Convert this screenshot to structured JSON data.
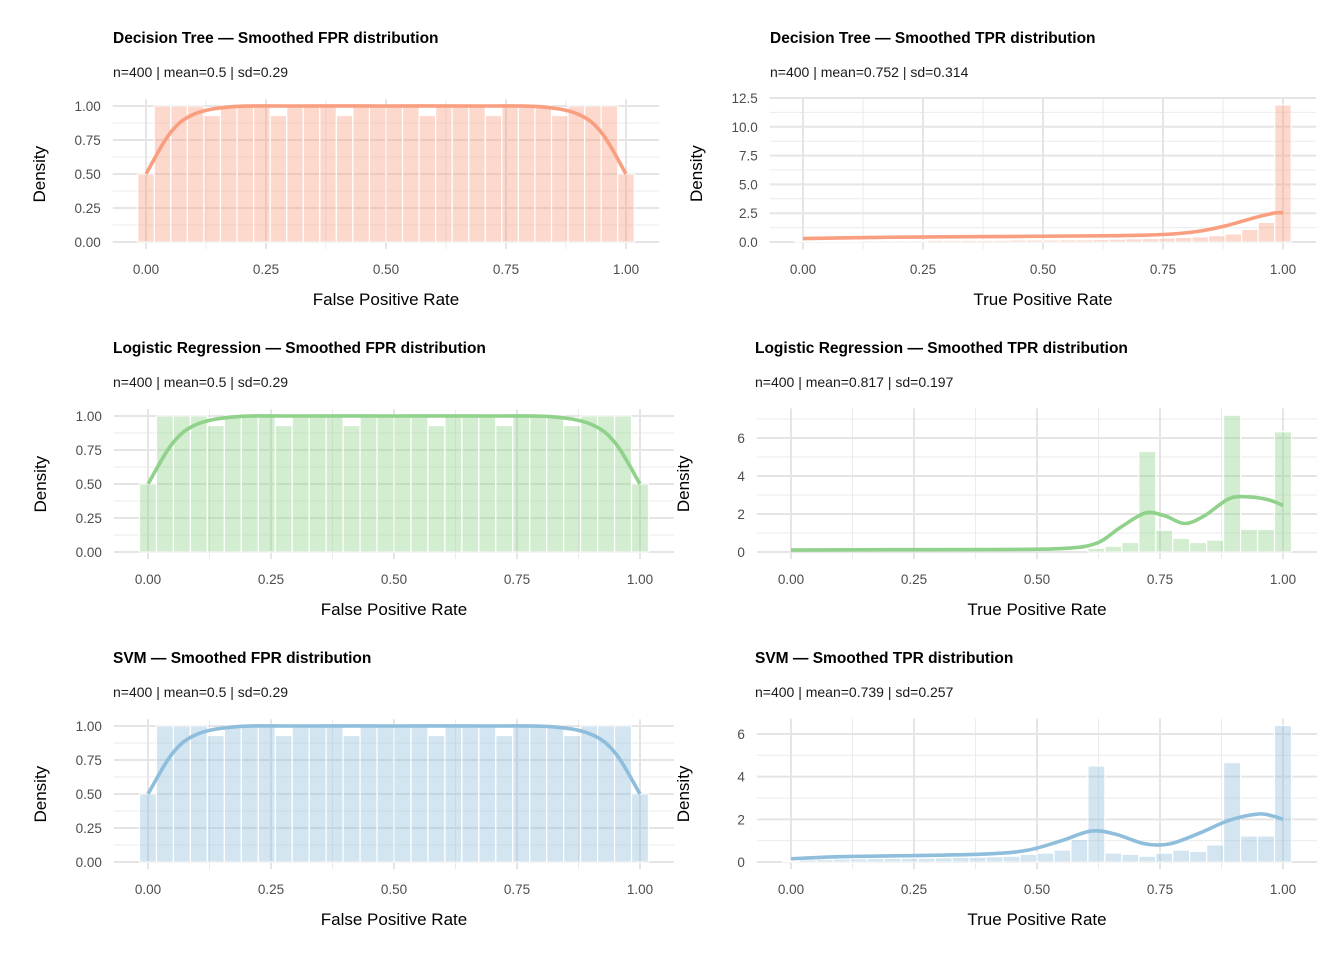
{
  "chart_data": [
    {
      "type": "bar+line",
      "title": "Decision Tree — Smoothed FPR distribution",
      "subtitle": "n=400 | mean=0.5 | sd=0.29",
      "xlabel": "False Positive Rate",
      "ylabel": "Density",
      "xticks": [
        "0.00",
        "0.25",
        "0.50",
        "0.75",
        "1.00"
      ],
      "yticks": [
        "0.00",
        "0.25",
        "0.50",
        "0.75",
        "1.00"
      ],
      "ytick_values": [
        0,
        0.25,
        0.5,
        0.75,
        1
      ],
      "xlim": [
        0,
        1
      ],
      "color": "#FA9E80",
      "bins": 30,
      "histogram_density": [
        0.5,
        1,
        1,
        1,
        0.93,
        1,
        1,
        1,
        0.93,
        1,
        1,
        1,
        0.93,
        1,
        1,
        1,
        1,
        0.93,
        1,
        1,
        1,
        0.93,
        1,
        1,
        1,
        0.93,
        1,
        1,
        1,
        0.5
      ],
      "density_curve": [
        [
          0,
          0.5
        ],
        [
          0.05,
          0.8
        ],
        [
          0.1,
          0.94
        ],
        [
          0.18,
          0.995
        ],
        [
          0.3,
          1
        ],
        [
          0.5,
          1
        ],
        [
          0.7,
          1
        ],
        [
          0.82,
          0.995
        ],
        [
          0.9,
          0.94
        ],
        [
          0.95,
          0.8
        ],
        [
          1,
          0.5
        ]
      ]
    },
    {
      "type": "bar+line",
      "title": "Decision Tree — Smoothed TPR distribution",
      "subtitle": "n=400 | mean=0.752 | sd=0.314",
      "xlabel": "True Positive Rate",
      "ylabel": "Density",
      "xticks": [
        "0.00",
        "0.25",
        "0.50",
        "0.75",
        "1.00"
      ],
      "yticks": [
        "0.0",
        "2.5",
        "5.0",
        "7.5",
        "10.0",
        "12.5"
      ],
      "ytick_values": [
        0,
        2.5,
        5,
        7.5,
        10,
        12.5
      ],
      "xlim": [
        0,
        1
      ],
      "color": "#FA9E80",
      "bins": 30,
      "histogram_density": [
        0.05,
        0.1,
        0.1,
        0.1,
        0.12,
        0.12,
        0.12,
        0.12,
        0.15,
        0.15,
        0.15,
        0.15,
        0.15,
        0.18,
        0.18,
        0.18,
        0.2,
        0.2,
        0.22,
        0.25,
        0.28,
        0.3,
        0.35,
        0.4,
        0.45,
        0.55,
        0.7,
        1.1,
        1.7,
        11.9
      ],
      "density_curve": [
        [
          0,
          0.3
        ],
        [
          0.15,
          0.4
        ],
        [
          0.3,
          0.45
        ],
        [
          0.5,
          0.5
        ],
        [
          0.65,
          0.55
        ],
        [
          0.75,
          0.65
        ],
        [
          0.82,
          0.9
        ],
        [
          0.88,
          1.4
        ],
        [
          0.94,
          2.1
        ],
        [
          0.98,
          2.5
        ],
        [
          1,
          2.55
        ]
      ]
    },
    {
      "type": "bar+line",
      "title": "Logistic Regression — Smoothed FPR distribution",
      "subtitle": "n=400 | mean=0.5 | sd=0.29",
      "xlabel": "False Positive Rate",
      "ylabel": "Density",
      "xticks": [
        "0.00",
        "0.25",
        "0.50",
        "0.75",
        "1.00"
      ],
      "yticks": [
        "0.00",
        "0.25",
        "0.50",
        "0.75",
        "1.00"
      ],
      "ytick_values": [
        0,
        0.25,
        0.5,
        0.75,
        1
      ],
      "xlim": [
        0,
        1
      ],
      "color": "#90D18B",
      "bins": 30,
      "histogram_density": [
        0.5,
        1,
        1,
        1,
        0.93,
        1,
        1,
        1,
        0.93,
        1,
        1,
        1,
        0.93,
        1,
        1,
        1,
        1,
        0.93,
        1,
        1,
        1,
        0.93,
        1,
        1,
        1,
        0.93,
        1,
        1,
        1,
        0.5
      ],
      "density_curve": [
        [
          0,
          0.5
        ],
        [
          0.05,
          0.8
        ],
        [
          0.1,
          0.94
        ],
        [
          0.18,
          0.995
        ],
        [
          0.3,
          1
        ],
        [
          0.5,
          1
        ],
        [
          0.7,
          1
        ],
        [
          0.82,
          0.995
        ],
        [
          0.9,
          0.94
        ],
        [
          0.95,
          0.8
        ],
        [
          1,
          0.5
        ]
      ]
    },
    {
      "type": "bar+line",
      "title": "Logistic Regression — Smoothed TPR distribution",
      "subtitle": "n=400 | mean=0.817 | sd=0.197",
      "xlabel": "True Positive Rate",
      "ylabel": "Density",
      "xticks": [
        "0.00",
        "0.25",
        "0.50",
        "0.75",
        "1.00"
      ],
      "yticks": [
        "0",
        "2",
        "4",
        "6"
      ],
      "ytick_values": [
        0,
        2,
        4,
        6
      ],
      "xlim": [
        0,
        1
      ],
      "color": "#90D18B",
      "bins": 30,
      "histogram_density": [
        0,
        0,
        0,
        0,
        0,
        0,
        0,
        0,
        0,
        0,
        0,
        0,
        0,
        0,
        0,
        0,
        0,
        0,
        0.2,
        0.3,
        0.5,
        5.3,
        1.15,
        0.72,
        0.5,
        0.63,
        7.2,
        1.2,
        1.2,
        6.33
      ],
      "density_curve": [
        [
          0,
          0.1
        ],
        [
          0.2,
          0.12
        ],
        [
          0.4,
          0.13
        ],
        [
          0.55,
          0.18
        ],
        [
          0.62,
          0.45
        ],
        [
          0.67,
          1.3
        ],
        [
          0.72,
          2.05
        ],
        [
          0.76,
          1.9
        ],
        [
          0.8,
          1.5
        ],
        [
          0.84,
          1.9
        ],
        [
          0.89,
          2.8
        ],
        [
          0.93,
          2.9
        ],
        [
          0.97,
          2.75
        ],
        [
          1,
          2.45
        ]
      ]
    },
    {
      "type": "bar+line",
      "title": "SVM — Smoothed FPR distribution",
      "subtitle": "n=400 | mean=0.5 | sd=0.29",
      "xlabel": "False Positive Rate",
      "ylabel": "Density",
      "xticks": [
        "0.00",
        "0.25",
        "0.50",
        "0.75",
        "1.00"
      ],
      "yticks": [
        "0.00",
        "0.25",
        "0.50",
        "0.75",
        "1.00"
      ],
      "ytick_values": [
        0,
        0.25,
        0.5,
        0.75,
        1
      ],
      "xlim": [
        0,
        1
      ],
      "color": "#8EBEDC",
      "bins": 30,
      "histogram_density": [
        0.5,
        1,
        1,
        1,
        0.93,
        1,
        1,
        1,
        0.93,
        1,
        1,
        1,
        0.93,
        1,
        1,
        1,
        1,
        0.93,
        1,
        1,
        1,
        0.93,
        1,
        1,
        1,
        0.93,
        1,
        1,
        1,
        0.5
      ],
      "density_curve": [
        [
          0,
          0.5
        ],
        [
          0.05,
          0.8
        ],
        [
          0.1,
          0.94
        ],
        [
          0.18,
          0.995
        ],
        [
          0.3,
          1
        ],
        [
          0.5,
          1
        ],
        [
          0.7,
          1
        ],
        [
          0.82,
          0.995
        ],
        [
          0.9,
          0.94
        ],
        [
          0.95,
          0.8
        ],
        [
          1,
          0.5
        ]
      ]
    },
    {
      "type": "bar+line",
      "title": "SVM — Smoothed TPR distribution",
      "subtitle": "n=400 | mean=0.739 | sd=0.257",
      "xlabel": "True Positive Rate",
      "ylabel": "Density",
      "xticks": [
        "0.00",
        "0.25",
        "0.50",
        "0.75",
        "1.00"
      ],
      "yticks": [
        "0",
        "2",
        "4",
        "6"
      ],
      "ytick_values": [
        0,
        2,
        4,
        6
      ],
      "xlim": [
        0,
        1
      ],
      "color": "#8EBEDC",
      "bins": 30,
      "histogram_density": [
        0.05,
        0.1,
        0.12,
        0.14,
        0.15,
        0.16,
        0.17,
        0.18,
        0.18,
        0.2,
        0.22,
        0.23,
        0.25,
        0.27,
        0.36,
        0.42,
        0.56,
        1.06,
        4.5,
        0.42,
        0.36,
        0.27,
        0.42,
        0.56,
        0.5,
        0.8,
        4.66,
        1.22,
        1.22,
        6.4
      ],
      "density_curve": [
        [
          0,
          0.15
        ],
        [
          0.1,
          0.25
        ],
        [
          0.25,
          0.3
        ],
        [
          0.4,
          0.38
        ],
        [
          0.48,
          0.55
        ],
        [
          0.55,
          1.0
        ],
        [
          0.61,
          1.45
        ],
        [
          0.66,
          1.3
        ],
        [
          0.72,
          0.85
        ],
        [
          0.77,
          0.85
        ],
        [
          0.83,
          1.35
        ],
        [
          0.89,
          1.95
        ],
        [
          0.95,
          2.25
        ],
        [
          0.98,
          2.15
        ],
        [
          1,
          2.0
        ]
      ]
    }
  ]
}
